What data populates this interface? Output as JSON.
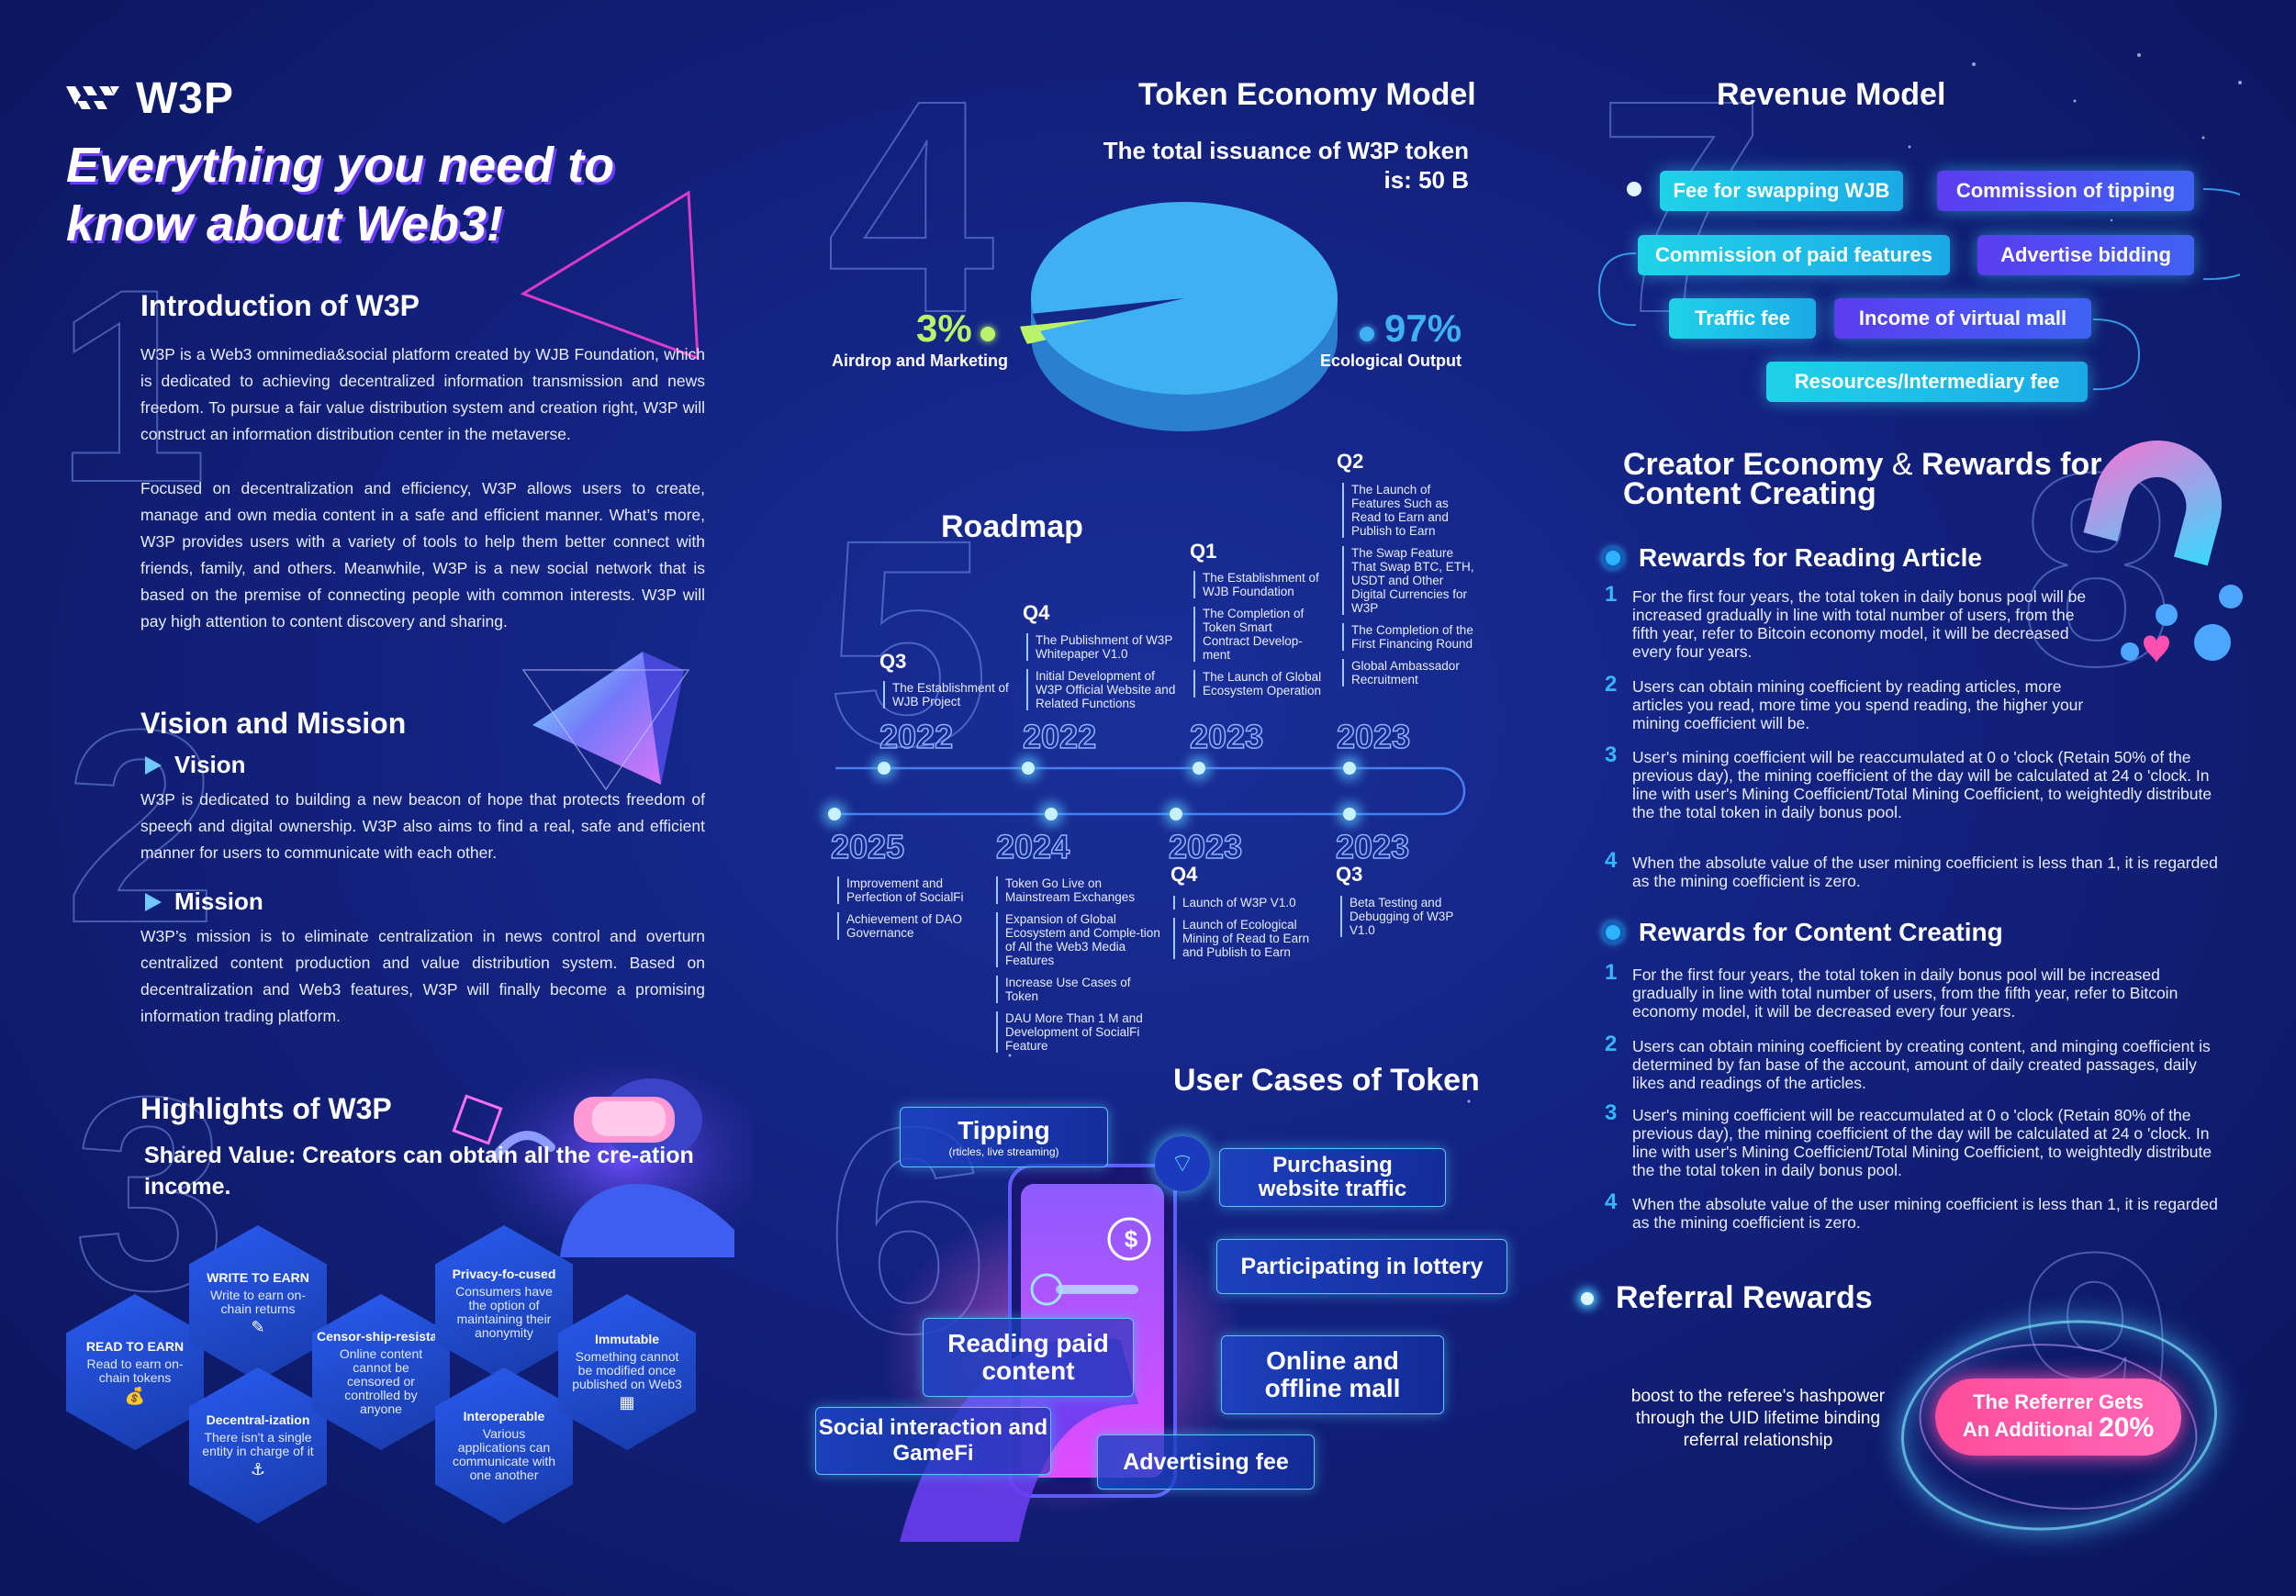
{
  "brand": {
    "logo_text": "W3P"
  },
  "headline": {
    "line1": "Everything you need to",
    "line2": "know about Web3!"
  },
  "section_numbers": [
    "1",
    "2",
    "3",
    "4",
    "5",
    "6",
    "7",
    "8",
    "9"
  ],
  "intro": {
    "title": "Introduction of W3P",
    "p1": "W3P is a Web3 omnimedia&social platform created by WJB Foundation, which is dedicated to achieving decentralized information transmission and news freedom. To pursue a fair value distribution system and creation right, W3P will construct an information distribution center in the metaverse.",
    "p2": "Focused on decentralization and efficiency, W3P allows users to create, manage and own media content in a safe and efficient manner. What’s more, W3P provides users with a variety of tools to help them better connect with friends, family, and others. Meanwhile, W3P is a new social network that is based on the premise of connecting people with common interests. W3P will pay high attention to content discovery and sharing."
  },
  "vision_mission": {
    "title": "Vision and Mission",
    "vision_title": "Vision",
    "vision_text": "W3P is dedicated to building a new beacon of hope that protects freedom of speech and digital ownership. W3P also aims to find a real, safe and efficient manner for users to communicate with each other.",
    "mission_title": "Mission",
    "mission_text": "W3P’s mission is to eliminate centralization in news control and overturn centralized content production and value distribution system. Based on decentralization and Web3 features, W3P will finally become a promising information trading platform."
  },
  "highlights": {
    "title": "Highlights of W3P",
    "shared_value": "Shared Value: Creators can obtain all the cre-ation income.",
    "hexes": [
      {
        "title": "READ TO EARN",
        "body": "Read to earn on-chain tokens"
      },
      {
        "title": "WRITE TO EARN",
        "body": "Write to earn on-chain returns"
      },
      {
        "title": "Decentral-ization",
        "body": "There isn't a single entity in charge of it"
      },
      {
        "title": "Censor-ship-resistan",
        "body": "Online content cannot be censored or controlled by anyone"
      },
      {
        "title": "Privacy-fo-cused",
        "body": "Consumers have the option of maintaining their anonymity"
      },
      {
        "title": "Interoperable",
        "body": "Various applications can communicate with one another"
      },
      {
        "title": "Immutable",
        "body": "Something cannot be modified once published on Web3"
      }
    ]
  },
  "token_economy": {
    "title": "Token Economy Model",
    "issuance_line1": "The total issuance of W3P token",
    "issuance_line2": "is: 50 B",
    "slices": [
      {
        "label": "Airdrop and Marketing",
        "percent_text": "3%",
        "value": 3,
        "color": "#b8f36a"
      },
      {
        "label": "Ecological Output",
        "percent_text": "97%",
        "value": 97,
        "color": "#3fb1f2"
      }
    ]
  },
  "roadmap": {
    "title": "Roadmap",
    "upper": [
      {
        "quarter": "Q3",
        "year": "2022",
        "items": [
          "The Establishment of WJB Project"
        ]
      },
      {
        "quarter": "Q4",
        "year": "2022",
        "items": [
          "The Publishment of W3P Whitepaper V1.0",
          "Initial Development of W3P Official Website and Related Functions"
        ]
      },
      {
        "quarter": "Q1",
        "year": "2023",
        "items": [
          "The Establishment of WJB Foundation",
          "The Completion of Token Smart Contract Develop-ment",
          "The Launch of Global Ecosystem Operation"
        ]
      },
      {
        "quarter": "Q2",
        "year": "2023",
        "items": [
          "The Launch of Features Such as Read to Earn and Publish to Earn",
          "The Swap Feature That Swap BTC, ETH, USDT and Other Digital Currencies for W3P",
          "The Completion of the First Financing Round",
          "Global Ambassador Recruitment"
        ]
      }
    ],
    "lower": [
      {
        "quarter": "",
        "year": "2025",
        "items": [
          "Improvement and Perfection of SocialFi",
          "Achievement of DAO Governance"
        ]
      },
      {
        "quarter": "",
        "year": "2024",
        "items": [
          "Token Go Live on Mainstream Exchanges",
          "Expansion of Global Ecosystem and Comple-tion of All the Web3 Media Features",
          "Increase Use Cases of Token",
          "DAU More Than 1 M and Development of SocialFi Feature"
        ]
      },
      {
        "quarter": "Q4",
        "year": "2023",
        "items": [
          "Launch of W3P V1.0",
          "Launch of Ecological Mining of Read to Earn and Publish to Earn"
        ]
      },
      {
        "quarter": "Q3",
        "year": "2023",
        "items": [
          "Beta Testing and Debugging of W3P V1.0"
        ]
      }
    ]
  },
  "user_cases": {
    "title": "User Cases of Token",
    "tipping": "Tipping",
    "tipping_sub": "(rticles, live streaming)",
    "purchasing": "Purchasing website traffic",
    "lottery": "Participating in lottery",
    "reading": "Reading paid content",
    "mall": "Online and offline mall",
    "social": "Social interaction and GameFi",
    "advertising": "Advertising fee",
    "icon_dollar": "$"
  },
  "revenue": {
    "title": "Revenue Model",
    "items": [
      "Fee for swapping WJB",
      "Commission of tipping",
      "Commission of paid features",
      "Advertise bidding",
      "Traffic fee",
      "Income of virtual mall",
      "Resources/Intermediary fee"
    ]
  },
  "creator": {
    "title_a": "Creator Economy",
    "amp": "&",
    "title_b": "Rewards for",
    "title_c": "Content Creating",
    "reading_title": "Rewards for Reading Article",
    "reading_items": [
      "For the first four years, the total token in daily bonus pool will be increased gradually in line with total number of users, from the fifth year, refer to Bitcoin economy model, it will be decreased every four years.",
      "Users can obtain mining coefficient by reading articles, more articles you read, more time you spend reading, the higher your mining coefficient will be.",
      "User's mining coefficient will be reaccumulated at 0 o 'clock (Retain 50% of the previous day), the mining coefficient of the day will be calculated at 24 o 'clock. In line with user's Mining Coefficient/Total Mining Coefficient, to weightedly distribute the the total token in daily bonus pool.",
      "When the absolute value of the user mining coefficient is less than 1, it is regarded as the mining coefficient is zero."
    ],
    "creating_title": "Rewards for Content Creating",
    "creating_items": [
      "For the first four years, the total token in daily bonus pool will be increased gradually in line with total number of users, from the fifth year, refer to Bitcoin economy model, it will be decreased every four years.",
      "Users can obtain mining coefficient by creating content, and minging coefficient is determined by fan base of the account, amount of daily created passages, daily likes and readings of the articles.",
      "User's mining coefficient will be reaccumulated at 0 o 'clock (Retain 80% of the previous day), the mining coefficient of the day will be calculated at 24 o 'clock. In line with user's Mining Coefficient/Total Mining Coefficient, to weightedly distribute the the total token in daily bonus pool.",
      "When the absolute value of the user mining coefficient is less than 1, it is regarded as the mining coefficient is zero."
    ],
    "numbers": [
      "1",
      "2",
      "3",
      "4"
    ]
  },
  "referral": {
    "title": "Referral Rewards",
    "desc": "boost to the referee's hashpower through the UID lifetime binding referral relationship",
    "badge_line1": "The Referrer Gets",
    "badge_line2": "An Additional",
    "badge_pct": "20%"
  },
  "colors": {
    "bg": "#13227f",
    "accent_cyan": "#1fd2e8",
    "accent_violet": "#5b3df0",
    "pie_main": "#3fb1f2",
    "pie_small": "#b8f36a",
    "pink": "#ff4fb0"
  }
}
